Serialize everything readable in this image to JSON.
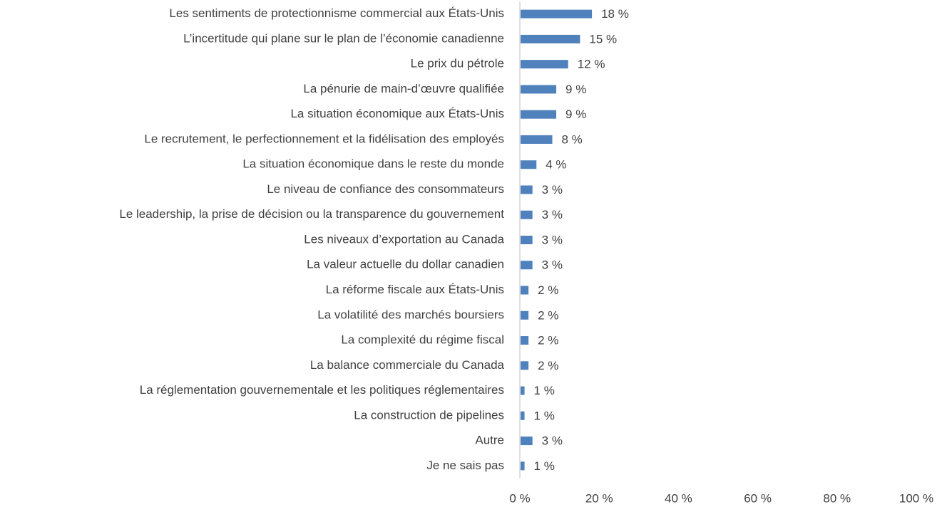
{
  "chart_data": {
    "type": "barh",
    "categories": [
      "Les sentiments de protectionnisme commercial aux États-Unis",
      "L’incertitude qui plane sur le plan de l’économie canadienne",
      "Le prix du pétrole",
      "La pénurie de main-d’œuvre qualifiée",
      "La situation économique aux États-Unis",
      "Le recrutement, le perfectionnement et la fidélisation des employés",
      "La situation économique dans le reste du monde",
      "Le niveau de confiance des consommateurs",
      "Le leadership, la prise de décision ou la transparence du gouvernement",
      "Les niveaux d’exportation au Canada",
      "La valeur actuelle du dollar canadien",
      "La réforme fiscale aux États-Unis",
      "La volatilité des marchés boursiers",
      "La complexité du régime fiscal",
      "La balance commerciale du Canada",
      "La réglementation gouvernementale et les politiques réglementaires",
      "La construction de pipelines",
      "Autre",
      "Je ne sais pas"
    ],
    "values": [
      18,
      15,
      12,
      9,
      9,
      8,
      4,
      3,
      3,
      3,
      3,
      2,
      2,
      2,
      2,
      1,
      1,
      3,
      1
    ],
    "value_labels": [
      "18 %",
      "15 %",
      "12 %",
      "9 %",
      "9 %",
      "8 %",
      "4 %",
      "3 %",
      "3 %",
      "3 %",
      "3 %",
      "2 %",
      "2 %",
      "2 %",
      "2 %",
      "1 %",
      "1 %",
      "3 %",
      "1 %"
    ],
    "color": "#4f81bd",
    "xlim": [
      0,
      100
    ],
    "xticks": [
      {
        "value": 0,
        "label": "0 %"
      },
      {
        "value": 20,
        "label": "20 %"
      },
      {
        "value": 40,
        "label": "40 %"
      },
      {
        "value": 60,
        "label": "60 %"
      },
      {
        "value": 80,
        "label": "80 %"
      },
      {
        "value": 100,
        "label": "100 %"
      }
    ],
    "grid": false
  }
}
